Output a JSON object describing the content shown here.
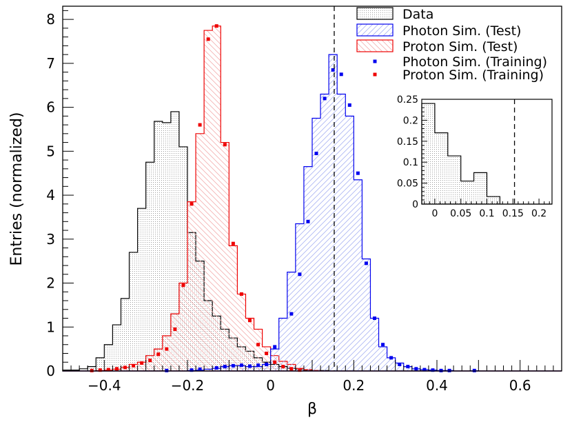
{
  "chart_data": {
    "type": "histogram",
    "xlabel": "β",
    "ylabel": "Entries (normalized)",
    "xlim": [
      -0.5,
      0.7
    ],
    "ylim": [
      0,
      8.3
    ],
    "xticks": [
      -0.4,
      -0.2,
      0,
      0.2,
      0.4,
      0.6
    ],
    "xtick_labels": [
      "−0.4",
      "−0.2",
      "0",
      "0.2",
      "0.4",
      "0.6"
    ],
    "yticks": [
      0,
      1,
      2,
      3,
      4,
      5,
      6,
      7,
      8
    ],
    "ytick_labels": [
      "0",
      "1",
      "2",
      "3",
      "4",
      "5",
      "6",
      "7",
      "8"
    ],
    "bin_edges": [
      -0.5,
      -0.48,
      -0.46,
      -0.44,
      -0.42,
      -0.4,
      -0.38,
      -0.36,
      -0.34,
      -0.32,
      -0.3,
      -0.28,
      -0.26,
      -0.24,
      -0.22,
      -0.2,
      -0.18,
      -0.16,
      -0.14,
      -0.12,
      -0.1,
      -0.08,
      -0.06,
      -0.04,
      -0.02,
      0.0,
      0.02,
      0.04,
      0.06,
      0.08,
      0.1,
      0.12,
      0.14,
      0.16,
      0.18,
      0.2,
      0.22,
      0.24,
      0.26,
      0.28,
      0.3,
      0.32,
      0.34,
      0.36,
      0.38,
      0.4,
      0.42,
      0.44,
      0.46,
      0.48,
      0.5,
      0.52,
      0.54,
      0.56,
      0.58,
      0.6,
      0.62,
      0.64,
      0.66,
      0.68,
      0.7
    ],
    "vline_x": 0.153,
    "series": [
      {
        "name": "Data",
        "style": "histogram-dotted-fill",
        "color": "#000000",
        "values": [
          0.02,
          0.02,
          0.05,
          0.1,
          0.3,
          0.6,
          1.05,
          1.65,
          2.7,
          3.7,
          4.75,
          5.68,
          5.65,
          5.9,
          5.1,
          3.15,
          2.5,
          1.6,
          1.25,
          0.95,
          0.75,
          0.55,
          0.45,
          0.3,
          0.2,
          0.15,
          0.1,
          0.06,
          0.04,
          0.02,
          0.01,
          0.01,
          0,
          0,
          0,
          0,
          0,
          0,
          0,
          0,
          0,
          0,
          0,
          0,
          0,
          0,
          0,
          0,
          0,
          0,
          0,
          0,
          0,
          0,
          0,
          0,
          0,
          0,
          0,
          0
        ]
      },
      {
        "name": "Photon Sim. (Test)",
        "style": "histogram-hatched",
        "color": "#0000ee",
        "values": [
          0,
          0,
          0,
          0,
          0,
          0,
          0,
          0,
          0,
          0,
          0,
          0,
          0,
          0,
          0,
          0.01,
          0.02,
          0.04,
          0.06,
          0.1,
          0.12,
          0.12,
          0.1,
          0.1,
          0.15,
          0.5,
          1.2,
          2.25,
          3.35,
          4.65,
          5.75,
          6.3,
          7.2,
          6.3,
          5.8,
          4.35,
          2.55,
          1.2,
          0.55,
          0.3,
          0.18,
          0.1,
          0.05,
          0.03,
          0.02,
          0.01,
          0.01,
          0,
          0,
          0.005,
          0,
          0,
          0,
          0,
          0,
          0,
          0,
          0,
          0,
          0
        ]
      },
      {
        "name": "Proton Sim. (Test)",
        "style": "histogram-hatched",
        "color": "#ee0000",
        "values": [
          0,
          0,
          0,
          0,
          0.01,
          0.02,
          0.04,
          0.08,
          0.15,
          0.2,
          0.35,
          0.5,
          0.8,
          1.3,
          2.0,
          3.85,
          5.4,
          7.75,
          7.85,
          5.2,
          2.85,
          1.75,
          1.2,
          0.95,
          0.55,
          0.35,
          0.22,
          0.15,
          0.06,
          0.03,
          0.01,
          0,
          0,
          0,
          0,
          0,
          0,
          0,
          0,
          0,
          0,
          0,
          0,
          0,
          0,
          0,
          0,
          0,
          0,
          0,
          0,
          0,
          0,
          0,
          0,
          0,
          0,
          0,
          0,
          0
        ]
      },
      {
        "name": "Photon Sim. (Training)",
        "style": "markers",
        "color": "#0000ee",
        "points": [
          [
            -0.25,
            0.01
          ],
          [
            -0.19,
            0.02
          ],
          [
            -0.17,
            0.04
          ],
          [
            -0.13,
            0.07
          ],
          [
            -0.11,
            0.1
          ],
          [
            -0.09,
            0.12
          ],
          [
            -0.07,
            0.13
          ],
          [
            -0.05,
            0.11
          ],
          [
            -0.03,
            0.13
          ],
          [
            -0.01,
            0.15
          ],
          [
            0.01,
            0.55
          ],
          [
            0.05,
            1.3
          ],
          [
            0.07,
            2.2
          ],
          [
            0.09,
            3.4
          ],
          [
            0.11,
            4.95
          ],
          [
            0.13,
            6.2
          ],
          [
            0.15,
            6.85
          ],
          [
            0.17,
            6.75
          ],
          [
            0.19,
            6.05
          ],
          [
            0.21,
            4.5
          ],
          [
            0.23,
            2.45
          ],
          [
            0.25,
            1.2
          ],
          [
            0.27,
            0.6
          ],
          [
            0.29,
            0.3
          ],
          [
            0.31,
            0.15
          ],
          [
            0.33,
            0.1
          ],
          [
            0.35,
            0.05
          ],
          [
            0.37,
            0.03
          ],
          [
            0.39,
            0.02
          ],
          [
            0.41,
            0.01
          ],
          [
            0.43,
            0.01
          ],
          [
            0.49,
            0.01
          ]
        ]
      },
      {
        "name": "Proton Sim. (Training)",
        "style": "markers",
        "color": "#ee0000",
        "points": [
          [
            -0.43,
            0.01
          ],
          [
            -0.41,
            0.02
          ],
          [
            -0.39,
            0.03
          ],
          [
            -0.37,
            0.05
          ],
          [
            -0.35,
            0.08
          ],
          [
            -0.33,
            0.12
          ],
          [
            -0.31,
            0.18
          ],
          [
            -0.29,
            0.24
          ],
          [
            -0.27,
            0.38
          ],
          [
            -0.25,
            0.5
          ],
          [
            -0.23,
            0.95
          ],
          [
            -0.21,
            1.95
          ],
          [
            -0.19,
            3.8
          ],
          [
            -0.17,
            5.6
          ],
          [
            -0.15,
            7.55
          ],
          [
            -0.13,
            7.85
          ],
          [
            -0.11,
            5.15
          ],
          [
            -0.09,
            2.9
          ],
          [
            -0.07,
            1.75
          ],
          [
            -0.05,
            1.15
          ],
          [
            -0.03,
            0.6
          ],
          [
            -0.01,
            0.4
          ],
          [
            0.01,
            0.2
          ],
          [
            0.03,
            0.1
          ],
          [
            0.05,
            0.05
          ],
          [
            0.07,
            0.02
          ]
        ]
      }
    ],
    "legend": [
      "Data",
      "Photon Sim. (Test)",
      "Proton Sim. (Test)",
      "Photon Sim. (Training)",
      "Proton Sim. (Training)"
    ],
    "inset": {
      "xlim": [
        -0.025,
        0.225
      ],
      "ylim": [
        0,
        0.25
      ],
      "xticks": [
        0,
        0.05,
        0.1,
        0.15,
        0.2
      ],
      "xtick_labels": [
        "0",
        "0.05",
        "0.1",
        "0.15",
        "0.2"
      ],
      "yticks": [
        0,
        0.05,
        0.1,
        0.15,
        0.2,
        0.25
      ],
      "ytick_labels": [
        "0",
        "0.05",
        "0.1",
        "0.15",
        "0.2",
        "0.25"
      ],
      "bin_edges": [
        -0.025,
        0,
        0.025,
        0.05,
        0.075,
        0.1,
        0.125,
        0.15,
        0.175,
        0.2,
        0.225
      ],
      "values": [
        0.24,
        0.17,
        0.115,
        0.055,
        0.075,
        0.018,
        0,
        0,
        0,
        0
      ],
      "vline_x": 0.153
    }
  }
}
